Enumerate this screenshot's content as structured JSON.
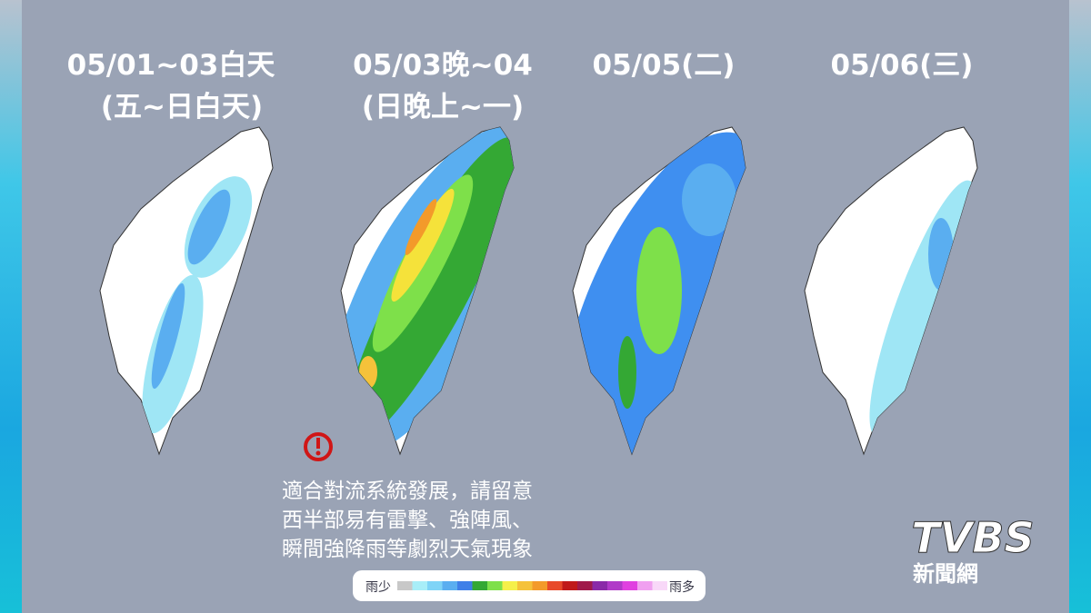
{
  "panels": [
    {
      "title": "05/01~03白天",
      "subtitle": "(五~日白天)"
    },
    {
      "title": "05/03晚~04",
      "subtitle": "(日晚上~一)"
    },
    {
      "title": "05/05(二)"
    },
    {
      "title": "05/06(三)"
    }
  ],
  "warning": {
    "lines": [
      "適合對流系統發展，請留意",
      "西半部易有雷擊、強陣風、",
      "瞬間強降雨等劇烈天氣現象"
    ]
  },
  "legend": {
    "low": "雨少",
    "high": "雨多"
  },
  "logo": {
    "brand": "TVBS",
    "sub": "新聞網"
  }
}
